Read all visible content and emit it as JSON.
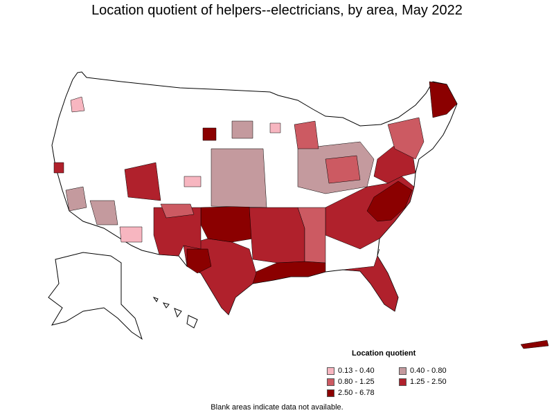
{
  "title": "Location quotient of helpers--electricians, by area, May 2022",
  "legend": {
    "title": "Location quotient",
    "items": [
      {
        "label": "0.13 - 0.40",
        "color": "#f7b6c0"
      },
      {
        "label": "0.40 - 0.80",
        "color": "#c49a9e"
      },
      {
        "label": "0.80 - 1.25",
        "color": "#cc5a62"
      },
      {
        "label": "1.25 - 2.50",
        "color": "#b0212c"
      },
      {
        "label": "2.50 - 6.78",
        "color": "#8b0000"
      }
    ]
  },
  "footnote": "Blank areas indicate data not available.",
  "colors": {
    "outline": "#000000",
    "blank": "#ffffff"
  }
}
